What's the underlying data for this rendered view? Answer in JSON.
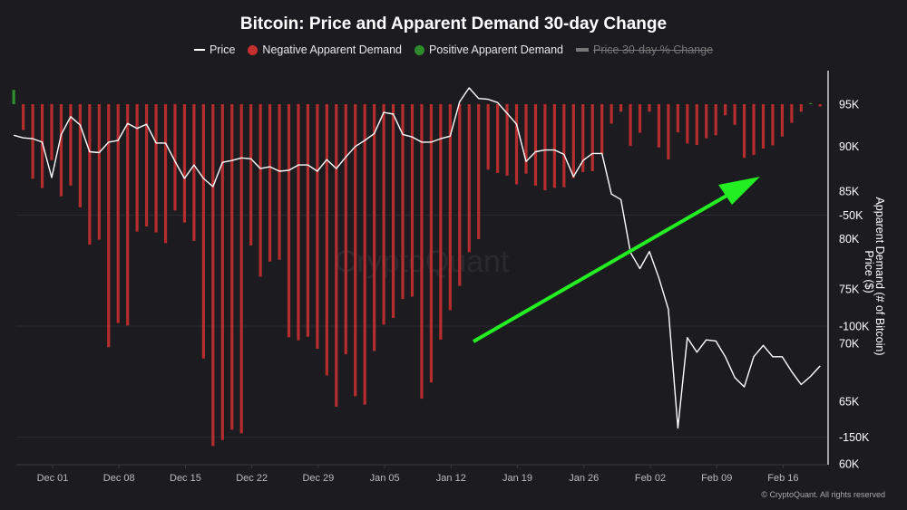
{
  "chart_data": {
    "type": "bar+line",
    "title": "Bitcoin: Price and Apparent Demand 30-day Change",
    "legend": [
      {
        "name": "Price",
        "color": "#ffffff",
        "marker": "line",
        "enabled": true
      },
      {
        "name": "Negative Apparent Demand",
        "color": "#c62f2f",
        "marker": "dot",
        "enabled": true
      },
      {
        "name": "Positive Apparent Demand",
        "color": "#2e8b2e",
        "marker": "dot",
        "enabled": true
      },
      {
        "name": "Price 30-day % Change",
        "color": "#777777",
        "marker": "bar",
        "enabled": false
      }
    ],
    "legend_position": "top",
    "x_start_date": "Nov 27",
    "x_ticks": [
      "Dec 01",
      "Dec 08",
      "Dec 15",
      "Dec 22",
      "Dec 29",
      "Jan 05",
      "Jan 12",
      "Jan 19",
      "Jan 26",
      "Feb 02",
      "Feb 09",
      "Feb 16"
    ],
    "y_right_label_demand": "Apparent Demand (# of Bitcoin)",
    "y_right_label_price": "Price ($)",
    "demand_ticks": [
      "-50K",
      "-100K",
      "-150K"
    ],
    "price_ticks": [
      "95K",
      "90K",
      "85K",
      "80K",
      "75K",
      "70K",
      "65K",
      "60K"
    ],
    "price_scale": "log",
    "price_range": [
      60000,
      95000
    ],
    "demand_range": [
      -150000,
      0
    ],
    "grid": true,
    "colors": {
      "negative": "#b52d2d",
      "positive": "#2f8f2f",
      "price": "#ffffff",
      "arrow": "#22ee22",
      "background": "#1c1b20"
    },
    "annotation": "green upward arrow",
    "apparent_demand_k": [
      6.4,
      -11.6,
      -33.6,
      -37.8,
      -25.2,
      -41.5,
      -36.7,
      -46.5,
      -63.3,
      -61.1,
      -109.5,
      -98.6,
      -99.7,
      -57.4,
      -55.1,
      -57.8,
      -62.6,
      -47.9,
      -53.3,
      -61.6,
      -114.6,
      -154.0,
      -151.3,
      -146.7,
      -148.3,
      -63.7,
      -77.7,
      -70.9,
      -70.1,
      -105.0,
      -106.4,
      -104.8,
      -110.2,
      -122.2,
      -136.3,
      -112.7,
      -131.6,
      -135.4,
      -111.2,
      -99.3,
      -96.3,
      -87.8,
      -86.7,
      -132.7,
      -125.4,
      -106.1,
      -92.8,
      -81.9,
      -66.7,
      -60.8,
      -29.5,
      -31.0,
      -32.2,
      -36.1,
      -31.3,
      -36.7,
      -38.8,
      -37.7,
      -37.4,
      -33.3,
      -30.6,
      -30.2,
      -22.4,
      -8.8,
      -3.4,
      -18.8,
      -12.9,
      -3.4,
      -19.5,
      -24.9,
      -12.7,
      -17.7,
      -18.4,
      -15.4,
      -14.0,
      -5.0,
      -9.3,
      -24.2,
      -22.9,
      -20.0,
      -18.6,
      -14.6,
      -8.4,
      -3.4,
      0.5,
      -1.0
    ],
    "price_k": [
      91.3,
      91.0,
      90.9,
      90.5,
      86.5,
      91.4,
      93.5,
      92.5,
      89.4,
      89.3,
      90.5,
      90.7,
      92.7,
      92.1,
      92.6,
      90.4,
      90.4,
      88.3,
      86.4,
      87.9,
      86.4,
      85.5,
      88.2,
      88.4,
      88.7,
      88.6,
      87.5,
      87.7,
      87.2,
      87.3,
      87.9,
      87.9,
      87.2,
      88.5,
      87.5,
      88.8,
      90.0,
      90.7,
      91.5,
      94.0,
      93.8,
      91.4,
      91.1,
      90.5,
      90.5,
      90.9,
      91.2,
      95.3,
      97.0,
      95.7,
      95.6,
      95.2,
      93.9,
      92.6,
      88.3,
      89.4,
      89.6,
      89.6,
      89.1,
      86.6,
      88.4,
      89.2,
      89.2,
      84.7,
      84.1,
      78.6,
      77.0,
      78.7,
      76.1,
      73.1,
      62.8,
      70.5,
      69.2,
      70.3,
      70.2,
      68.8,
      67.0,
      66.2,
      68.8,
      69.8,
      68.8,
      68.8,
      67.5,
      66.4,
      67.1,
      68.0
    ]
  },
  "watermark": "CryptoQuant",
  "footer": "© CryptoQuant. All rights reserved"
}
